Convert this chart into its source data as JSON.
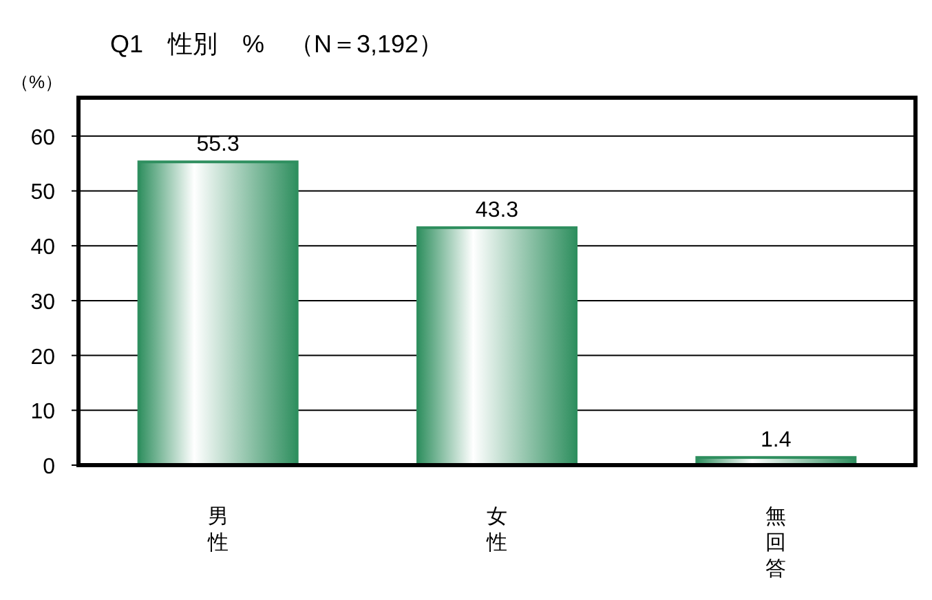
{
  "chart_data": {
    "type": "bar",
    "title": "Q1　性別　%　（N＝3,192）",
    "ylabel": "（%）",
    "categories": [
      "男性",
      "女性",
      "無回答"
    ],
    "values": [
      55.3,
      43.3,
      1.4
    ],
    "color": "#2f8f5f",
    "ylim": [
      0,
      67
    ],
    "yticks": [
      0,
      10,
      20,
      30,
      40,
      50,
      60
    ],
    "grid": "y",
    "data_labels": true
  }
}
